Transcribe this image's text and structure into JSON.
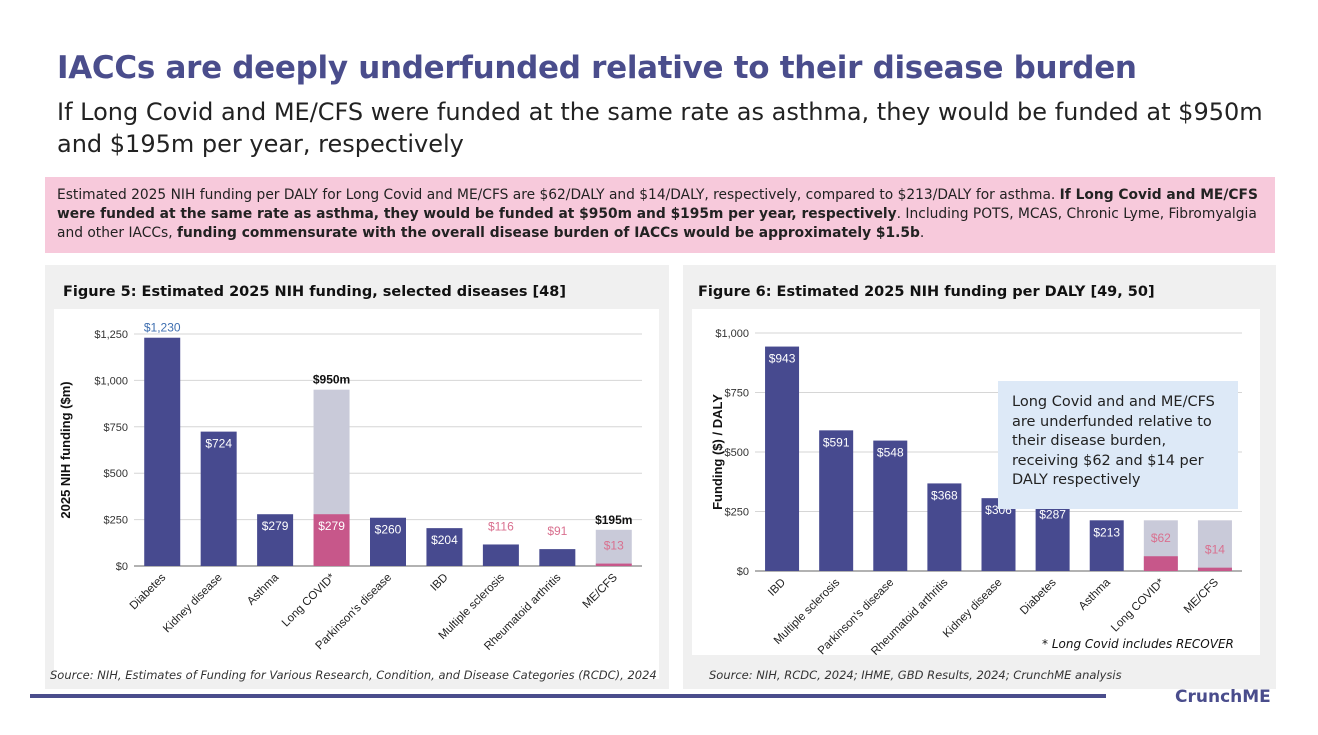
{
  "header": {
    "title": "IACCs are deeply underfunded relative to their disease burden",
    "subtitle": "If Long Covid and ME/CFS were funded at the same rate as asthma, they would be funded at $950m and $195m per year, respectively"
  },
  "callout": {
    "part1": "Estimated 2025 NIH funding per DALY for Long Covid and ME/CFS are $62/DALY and $14/DALY, respectively, compared to $213/DALY for asthma. ",
    "part2_bold": "If Long Covid and ME/CFS were funded at the same rate as asthma, they would be funded at $950m and $195m per year, respectively",
    "part3": ". Including POTS, MCAS, Chronic Lyme, Fibromyalgia and other IACCs, ",
    "part4_bold": "funding commensurate with the overall disease burden of IACCs would be approximately $1.5b",
    "part5": "."
  },
  "figure5": {
    "title": "Figure 5: Estimated 2025 NIH funding, selected diseases [48]",
    "source": "Source: NIH, Estimates of Funding for Various Research, Condition, and Disease Categories (RCDC), 2024"
  },
  "figure6": {
    "title": "Figure 6: Estimated 2025 NIH funding per DALY [49, 50]",
    "source": "Source: NIH, RCDC, 2024; IHME, GBD Results, 2024; CrunchME analysis",
    "note": "Long Covid and and ME/CFS are underfunded relative to their disease burden, receiving $62 and $14 per DALY respectively",
    "footnote": "* Long Covid includes RECOVER"
  },
  "chart_data": [
    {
      "type": "bar",
      "ylabel": "2025 NIH funding ($m)",
      "ylim": [
        0,
        1250
      ],
      "yticks": [
        "$0",
        "$250",
        "$500",
        "$750",
        "$1,000",
        "$1,250"
      ],
      "grid": true,
      "categories": [
        "Diabetes",
        "Kidney disease",
        "Asthma",
        "Long COVID*",
        "Parkinson's disease",
        "IBD",
        "Multiple sclerosis",
        "Rheumatoid arthritis",
        "ME/CFS"
      ],
      "values": [
        1230,
        724,
        279,
        279,
        260,
        204,
        116,
        91,
        13
      ],
      "value_labels": [
        "$1,230",
        "$724",
        "$279",
        "$279",
        "$260",
        "$204",
        "$116",
        "$91",
        "$13"
      ],
      "potential_funding": [
        null,
        null,
        null,
        950,
        null,
        null,
        null,
        null,
        195
      ],
      "potential_labels": [
        "",
        "",
        "",
        "$950m",
        "",
        "",
        "",
        "",
        "$195m"
      ],
      "colors": {
        "bar": "#474a8f",
        "highlight": "#c7578a",
        "potential": "#c9cad9",
        "top_label": "#3f6fb0",
        "light_label": "#d9708f"
      }
    },
    {
      "type": "bar",
      "ylabel": "Funding ($) / DALY",
      "ylim": [
        0,
        1000
      ],
      "yticks": [
        "$0",
        "$250",
        "$500",
        "$750",
        "$1,000"
      ],
      "grid": true,
      "categories": [
        "IBD",
        "Multiple sclerosis",
        "Parkinson's disease",
        "Rheumatoid arthritis",
        "Kidney disease",
        "Diabetes",
        "Asthma",
        "Long COVID*",
        "ME/CFS"
      ],
      "values": [
        943,
        591,
        548,
        368,
        306,
        287,
        213,
        62,
        14
      ],
      "value_labels": [
        "$943",
        "$591",
        "$548",
        "$368",
        "$306",
        "$287",
        "$213",
        "$62",
        "$14"
      ],
      "potential_funding": [
        null,
        null,
        null,
        null,
        null,
        null,
        null,
        213,
        213
      ],
      "colors": {
        "bar": "#474a8f",
        "highlight": "#c7578a",
        "potential": "#c9cad9",
        "light_label": "#d9708f"
      }
    }
  ],
  "footer": {
    "brand": "CrunchME"
  }
}
